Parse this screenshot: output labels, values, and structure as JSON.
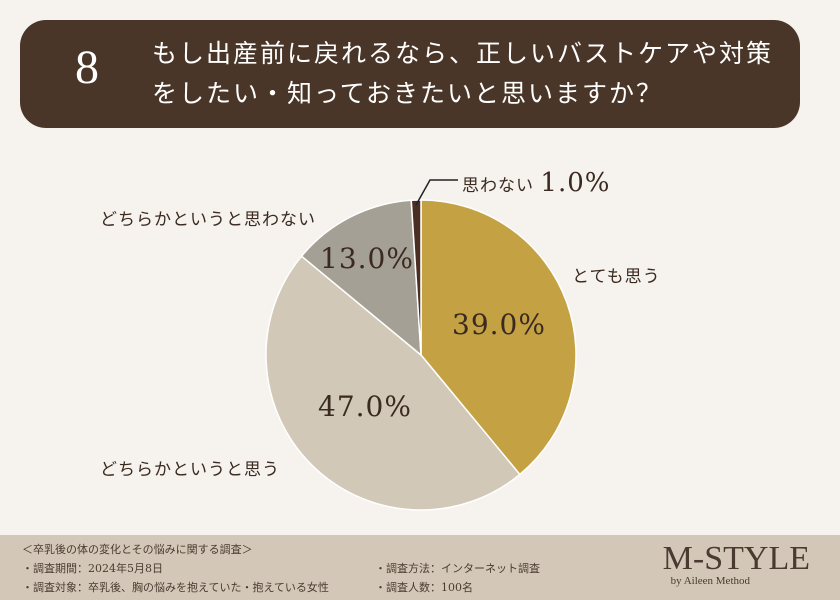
{
  "header": {
    "number": "8",
    "question_line1": "もし出産前に戻れるなら、正しいバストケアや対策",
    "question_line2": "をしたい・知っておきたいと思いますか？"
  },
  "chart_data": {
    "type": "pie",
    "title": "もし出産前に戻れるなら、正しいバストケアや対策をしたい・知っておきたいと思いますか？",
    "slices": [
      {
        "label": "とても思う",
        "value": 39.0,
        "display": "39.0%",
        "color": "#C4A244"
      },
      {
        "label": "どちらかというと思う",
        "value": 47.0,
        "display": "47.0%",
        "color": "#D2C8B7"
      },
      {
        "label": "どちらかというと思わない",
        "value": 13.0,
        "display": "13.0%",
        "color": "#A5A095"
      },
      {
        "label": "思わない",
        "value": 1.0,
        "display": "1.0%",
        "color": "#4A2E22"
      }
    ]
  },
  "footer": {
    "survey_title": "＜卒乳後の体の変化とその悩みに関する調査＞",
    "period": "・調査期間：2024年5月8日",
    "target": "・調査対象：卒乳後、胸の悩みを抱えていた・抱えている女性",
    "method": "・調査方法：インターネット調査",
    "count": "・調査人数：100名",
    "logo": "M-STYLE",
    "logo_sub": "by Aileen Method"
  }
}
